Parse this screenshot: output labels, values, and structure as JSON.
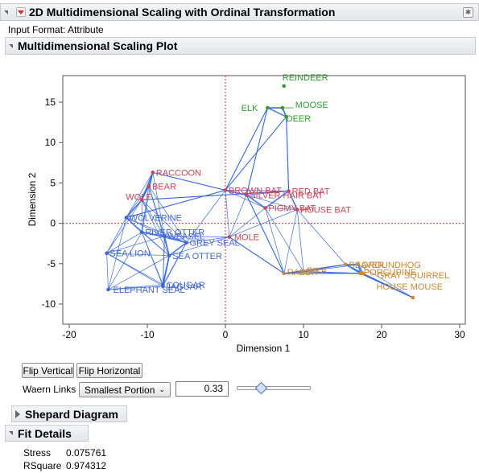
{
  "report": {
    "title": "2D Multidimensional Scaling with Ordinal Transformation",
    "input_format": "Input Format: Attribute"
  },
  "plot_section": {
    "title": "Multidimensional Scaling Plot"
  },
  "chart_data": {
    "type": "scatter",
    "xlabel": "Dimension 1",
    "ylabel": "Dimension 2",
    "xlim": [
      -20,
      30
    ],
    "ylim": [
      -10,
      17
    ],
    "xticks": [
      "-20",
      "-10",
      "0",
      "10",
      "20",
      "30"
    ],
    "yticks": [
      "15",
      "10",
      "5",
      "0",
      "-5",
      "-10"
    ],
    "reference_lines": {
      "x": 0,
      "y": 0,
      "color": "#cc3333"
    },
    "link_color": "#3366dd",
    "points": [
      {
        "label": "REINDEER",
        "x": 7.5,
        "y": 17,
        "color": "#339933"
      },
      {
        "label": "ELK",
        "x": 5.4,
        "y": 14.3,
        "color": "#339933"
      },
      {
        "label": "MOOSE",
        "x": 7.3,
        "y": 14.3,
        "color": "#339933"
      },
      {
        "label": "DEER",
        "x": 7.8,
        "y": 13.2,
        "color": "#339933"
      },
      {
        "label": "RACCOON",
        "x": -9.3,
        "y": 6.3,
        "color": "#cc4455"
      },
      {
        "label": "BEAR",
        "x": -9.8,
        "y": 4.6,
        "color": "#cc4455"
      },
      {
        "label": "WOLF",
        "x": -10.7,
        "y": 2.9,
        "color": "#cc4455"
      },
      {
        "label": "BROWN BAT",
        "x": 0,
        "y": 4.1,
        "color": "#cc4455"
      },
      {
        "label": "RED BAT",
        "x": 8.1,
        "y": 4.0,
        "color": "#cc4455"
      },
      {
        "label": "SILVER HAIR BAT",
        "x": 2.7,
        "y": 3.5,
        "color": "#cc4455"
      },
      {
        "label": "PIGMY BAT",
        "x": 5.1,
        "y": 1.9,
        "color": "#cc4455"
      },
      {
        "label": "HOUSE BAT",
        "x": 9.2,
        "y": 1.7,
        "color": "#cc4455"
      },
      {
        "label": "MOLE",
        "x": 0.5,
        "y": -1.7,
        "color": "#cc4455"
      },
      {
        "label": "WOLVERINE",
        "x": -12.7,
        "y": 0.7,
        "color": "#4466cc"
      },
      {
        "label": "RIVER OTTER",
        "x": -10.7,
        "y": -1.1,
        "color": "#4466cc"
      },
      {
        "label": "WEASEL",
        "x": -7.8,
        "y": -1.6,
        "color": "#4466cc"
      },
      {
        "label": "GREY SEAL",
        "x": -5.0,
        "y": -2.4,
        "color": "#4466cc"
      },
      {
        "label": "SEA OTTER",
        "x": -7.2,
        "y": -4.0,
        "color": "#4466cc"
      },
      {
        "label": "SEA LION",
        "x": -15.2,
        "y": -3.7,
        "color": "#4466cc"
      },
      {
        "label": "ELEPHANT SEAL",
        "x": -15.0,
        "y": -8.2,
        "color": "#4466cc"
      },
      {
        "label": "JAGUAR",
        "x": -8.0,
        "y": -7.8,
        "color": "#4466cc"
      },
      {
        "label": "COUGAR",
        "x": -8.0,
        "y": -7.6,
        "color": "#4466cc"
      },
      {
        "label": "RABBIT",
        "x": 7.5,
        "y": -6.2,
        "color": "#cc8833"
      },
      {
        "label": "PIKA",
        "x": 10.0,
        "y": -6.0,
        "color": "#cc8833"
      },
      {
        "label": "BEAVER",
        "x": 15.4,
        "y": -5.1,
        "color": "#cc8833"
      },
      {
        "label": "GROUNDHOG",
        "x": 17.0,
        "y": -5.1,
        "color": "#cc8833"
      },
      {
        "label": "PORCUPINE",
        "x": 17.3,
        "y": -6.2,
        "color": "#cc8833"
      },
      {
        "label": "GRAY SQUIRREL",
        "x": 17.6,
        "y": -6.2,
        "color": "#cc8833"
      },
      {
        "label": "HOUSE MOUSE",
        "x": 24,
        "y": -9.2,
        "color": "#cc8833"
      }
    ]
  },
  "controls": {
    "flip_vertical": "Flip Vertical",
    "flip_horizontal": "Flip Horizontal",
    "waern_label": "Waern Links",
    "waern_value": "Smallest Portion",
    "waern_number": "0.33",
    "slider_value": 0.33
  },
  "shepard": {
    "title": "Shepard Diagram"
  },
  "fit": {
    "title": "Fit Details",
    "rows": [
      {
        "label": "Stress",
        "value": "0.075761"
      },
      {
        "label": "RSquare",
        "value": "0.974312"
      }
    ]
  }
}
